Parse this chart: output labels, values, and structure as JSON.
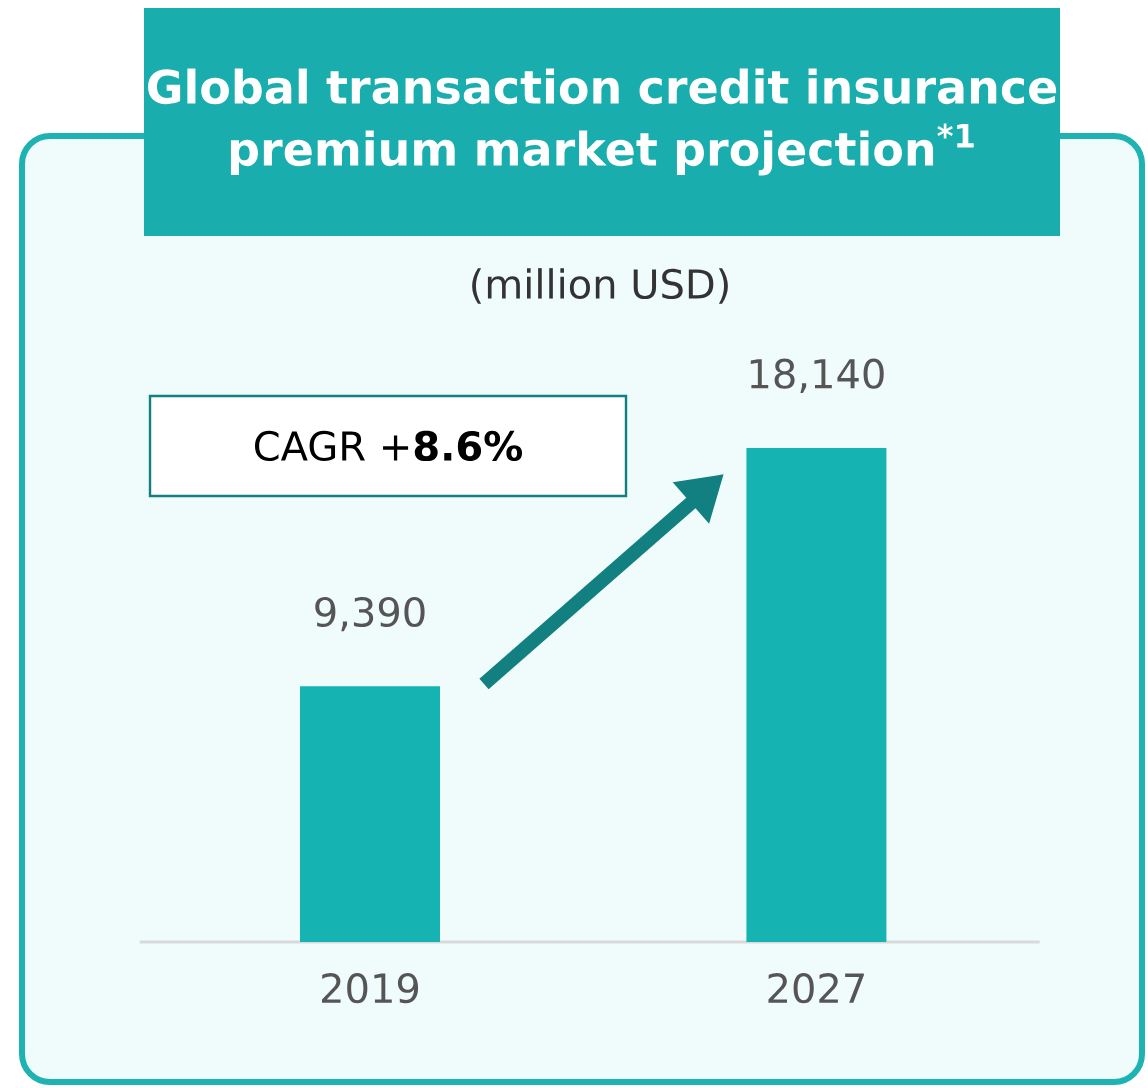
{
  "chart_data": {
    "type": "bar",
    "title": "Global transaction credit insurance premium market projection$^{*1}$",
    "subtitle": "(million USD)",
    "categories": [
      "2019",
      "2027"
    ],
    "values": [
      9390,
      18140
    ],
    "value_labels": [
      "9,390",
      "18,140"
    ],
    "color": "#16b3b3",
    "annotations": [
      "CAGR +**8.6%**"
    ]
  }
}
